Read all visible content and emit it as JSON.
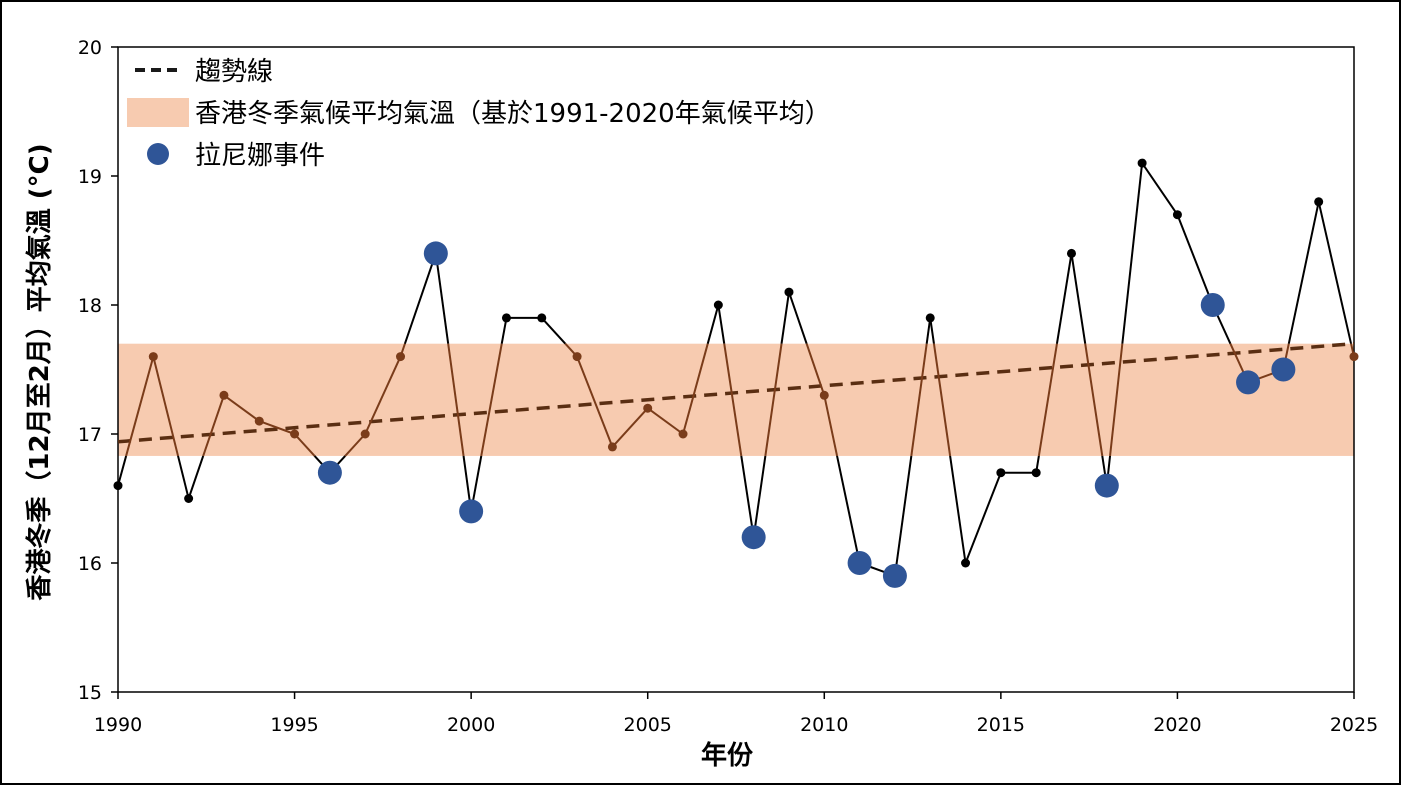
{
  "chart_data": {
    "type": "line",
    "xlabel": "年份",
    "ylabel": "香港冬季（12月至2月）平均氣溫 (°C)",
    "xlim": [
      1990,
      2025
    ],
    "ylim": [
      15,
      20
    ],
    "xticks": [
      1990,
      1995,
      2000,
      2005,
      2010,
      2015,
      2020,
      2025
    ],
    "yticks": [
      15,
      16,
      17,
      18,
      19,
      20
    ],
    "grid": false,
    "legend_position": "top-left",
    "legend": {
      "trend_label": "趨勢線",
      "band_label": "香港冬季氣候平均氣溫（基於1991-2020年氣候平均）",
      "la_nina_label": "拉尼娜事件"
    },
    "series": [
      {
        "name": "",
        "x": [
          1990,
          1991,
          1992,
          1993,
          1994,
          1995,
          1996,
          1997,
          1998,
          1999,
          2000,
          2001,
          2002,
          2003,
          2004,
          2005,
          2006,
          2007,
          2008,
          2009,
          2010,
          2011,
          2012,
          2013,
          2014,
          2015,
          2016,
          2017,
          2018,
          2019,
          2020,
          2021,
          2022,
          2023,
          2024,
          2025
        ],
        "values": [
          16.6,
          17.6,
          16.5,
          17.3,
          17.1,
          17.0,
          16.7,
          17.0,
          17.6,
          18.4,
          16.4,
          17.9,
          17.9,
          17.6,
          16.9,
          17.2,
          17.0,
          18.0,
          16.2,
          18.1,
          17.3,
          16.0,
          15.9,
          17.9,
          16.0,
          16.7,
          16.7,
          18.4,
          16.6,
          19.1,
          18.7,
          18.0,
          17.4,
          17.5,
          18.8,
          17.6
        ]
      }
    ],
    "la_nina_years": [
      1996,
      1999,
      2000,
      2008,
      2011,
      2012,
      2018,
      2021,
      2022,
      2023
    ],
    "trend": {
      "x": [
        1990,
        2025
      ],
      "values": [
        16.94,
        17.7
      ]
    },
    "climate_band": {
      "low": 16.83,
      "high": 17.7
    },
    "colors": {
      "line": "#000000",
      "band_line": "#7a3c1a",
      "band_fill": "#f7cbb0",
      "trend": "#5a2e12",
      "la_nina": "#2f5597"
    }
  }
}
